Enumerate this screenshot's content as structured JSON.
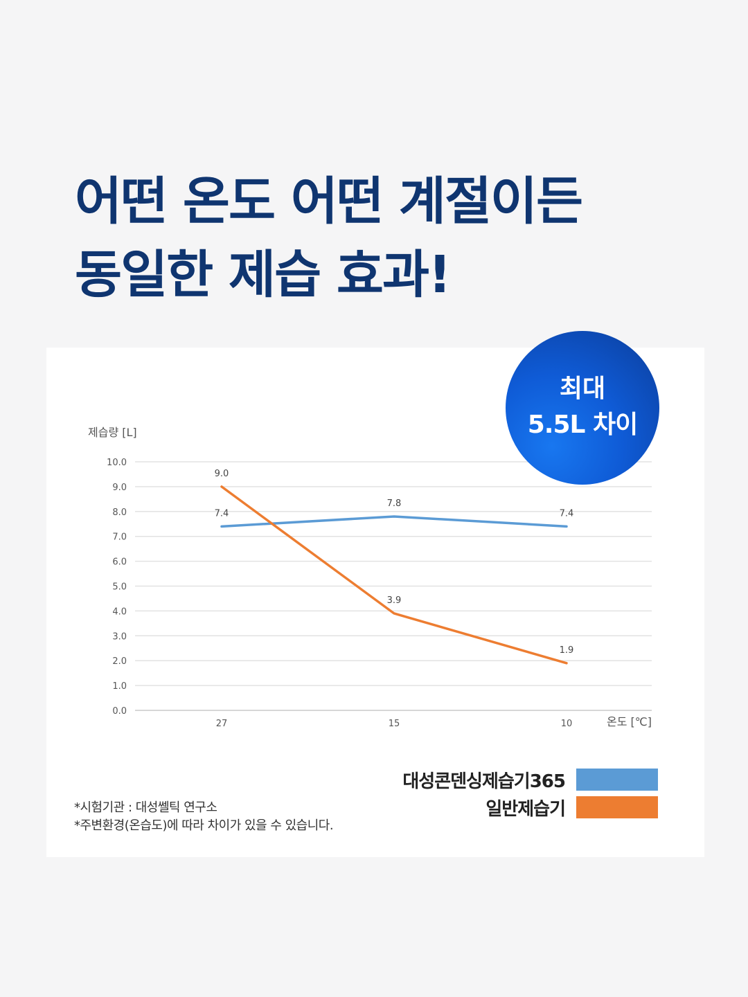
{
  "headline": {
    "line1": "어떤 온도 어떤 계절이든",
    "line2": "동일한 제습 효과!"
  },
  "badge": {
    "line1": "최대",
    "line2": "5.5L 차이"
  },
  "chart_data": {
    "type": "line",
    "ylabel": "제습량 [L]",
    "xlabel": "온도 [℃]",
    "categories": [
      "27",
      "15",
      "10"
    ],
    "ylim": [
      0,
      10
    ],
    "yticks": [
      "0.0",
      "1.0",
      "2.0",
      "3.0",
      "4.0",
      "5.0",
      "6.0",
      "7.0",
      "8.0",
      "9.0",
      "10.0"
    ],
    "grid": true,
    "legend_position": "bottom-right",
    "series": [
      {
        "name": "대성콘덴싱제습기365",
        "values": [
          7.4,
          7.8,
          7.4
        ],
        "labels": [
          "7.4",
          "7.8",
          "7.4"
        ],
        "color": "#5b9bd5"
      },
      {
        "name": "일반제습기",
        "values": [
          9.0,
          3.9,
          1.9
        ],
        "labels": [
          "9.0",
          "3.9",
          "1.9"
        ],
        "color": "#ed7d31"
      }
    ]
  },
  "notes": [
    "*시험기관 : 대성쎌틱 연구소",
    "*주변환경(온습도)에 따라 차이가 있을 수 있습니다."
  ]
}
